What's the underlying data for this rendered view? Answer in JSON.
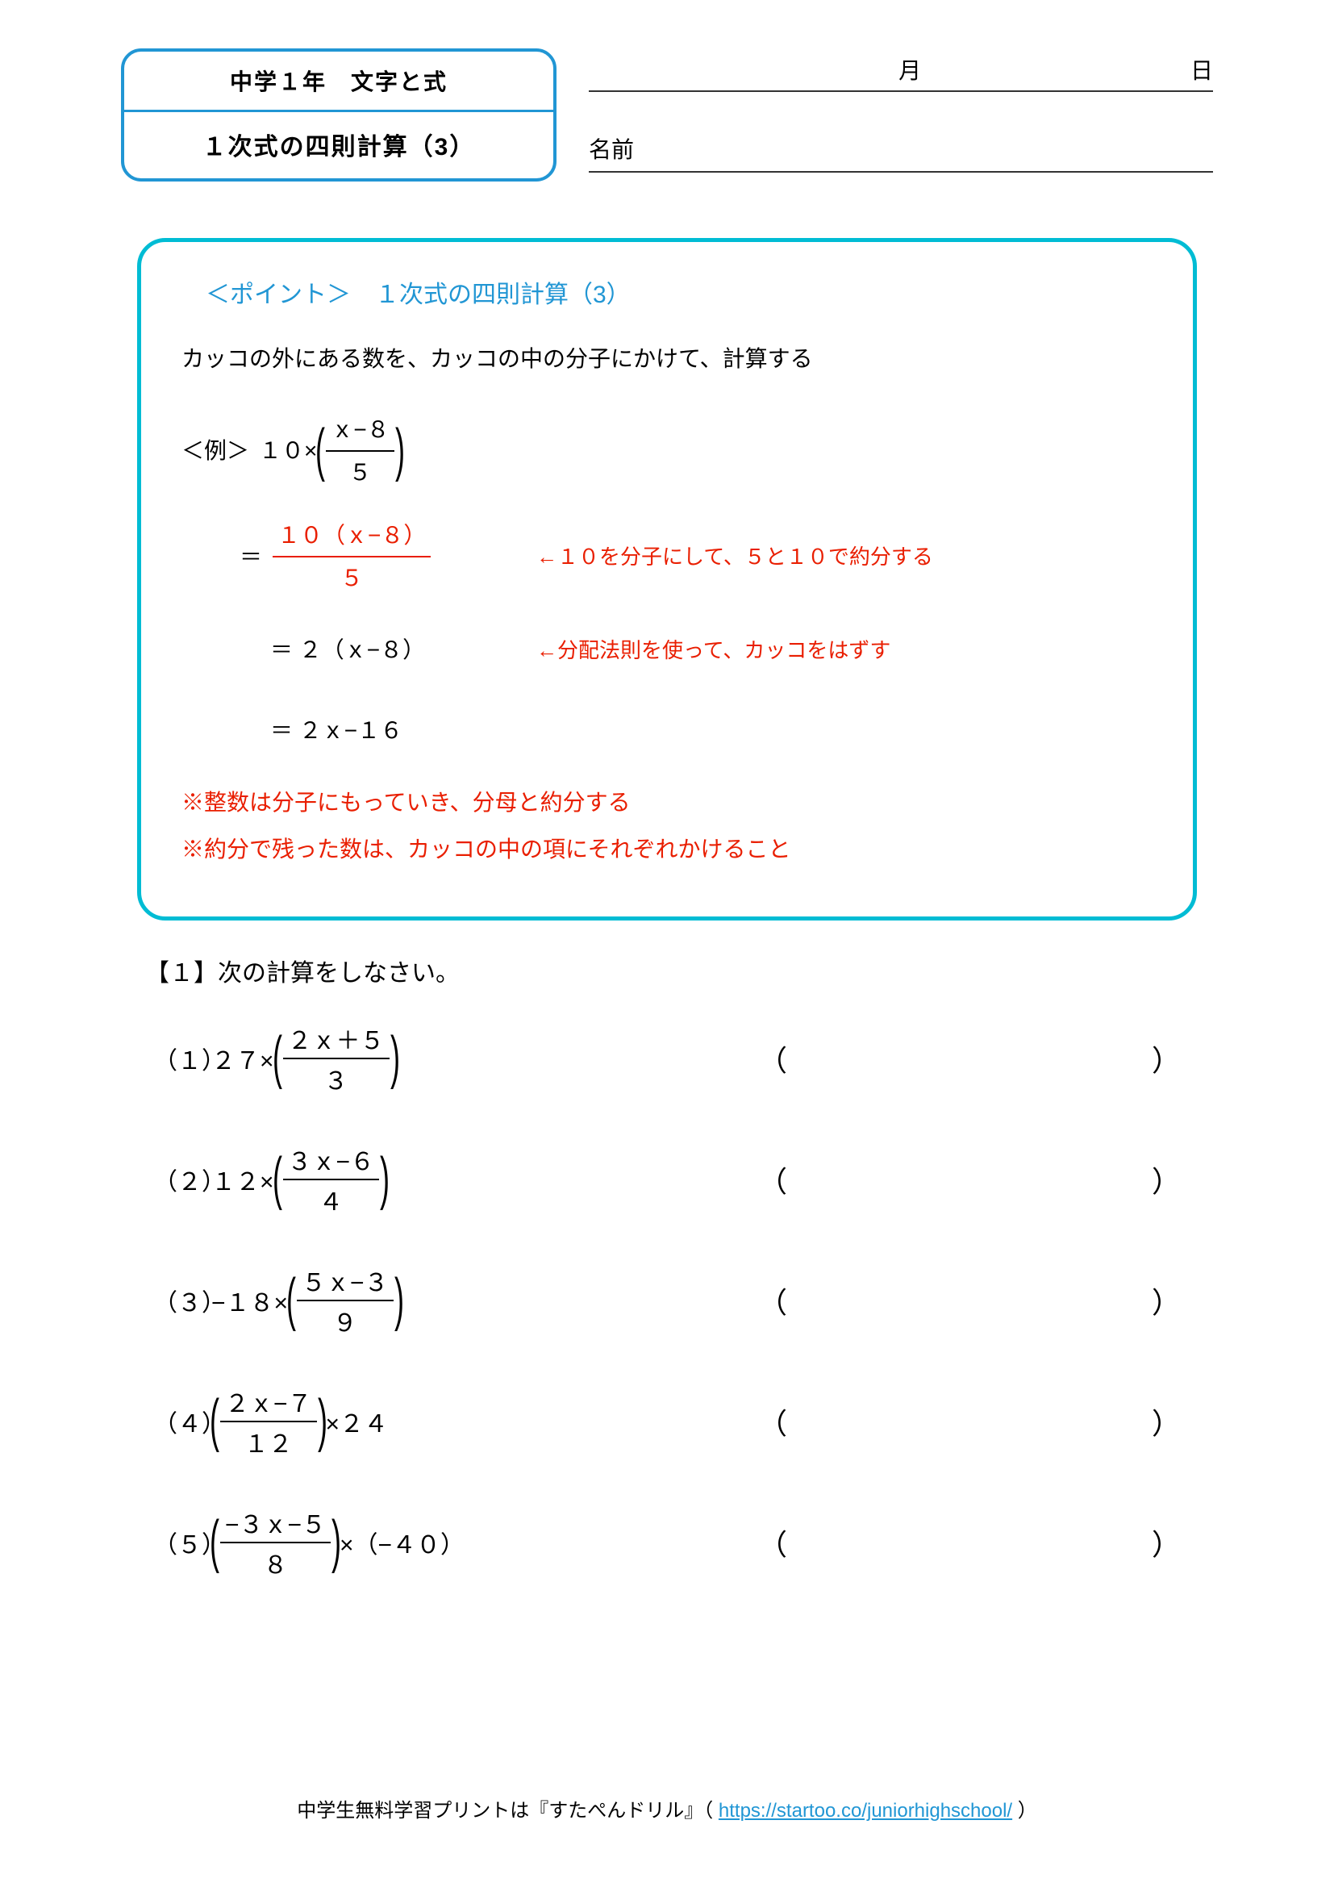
{
  "header": {
    "grade_subject": "中学１年　文字と式",
    "topic": "１次式の四則計算（3）",
    "month_label": "月",
    "day_label": "日",
    "name_label": "名前"
  },
  "point": {
    "title": "＜ポイント＞　１次式の四則計算（3）",
    "desc": "カッコの外にある数を、カッコの中の分子にかけて、計算する",
    "example_label": "＜例＞",
    "ex_lhs_coef": "１０×",
    "ex_frac_num": "ｘ−８",
    "ex_frac_den": "５",
    "step1_eq": "＝",
    "step1_num": "１０（ｘ−８）",
    "step1_den": "５",
    "step1_note": "←１０を分子にして、５と１０で約分する",
    "step2_eq": "＝ ２（ｘ−８）",
    "step2_note": "←分配法則を使って、カッコをはずす",
    "step3_eq": "＝ ２ｘ−１６",
    "note1": "※整数は分子にもっていき、分母と約分する",
    "note2": "※約分で残った数は、カッコの中の項にそれぞれかけること"
  },
  "section": {
    "label": "【１】次の計算をしなさい。"
  },
  "problems": [
    {
      "n": "（１）",
      "pre": "２７×",
      "num": "２ｘ＋５",
      "den": "３",
      "post": ""
    },
    {
      "n": "（２）",
      "pre": "１２×",
      "num": "３ｘ−６",
      "den": "４",
      "post": ""
    },
    {
      "n": "（３）",
      "pre": "−１８×",
      "num": "５ｘ−３",
      "den": "９",
      "post": ""
    },
    {
      "n": "（４）",
      "pre": "",
      "num": "２ｘ−７",
      "den": "１２",
      "post": " ×２４"
    },
    {
      "n": "（５）",
      "pre": "",
      "num": "−３ｘ−５",
      "den": "８",
      "post": " ×（−４０）"
    }
  ],
  "footer": {
    "text_before": "中学生無料学習プリントは『すたぺんドリル』（ ",
    "link": "https://startoo.co/juniorhighschool/",
    "text_after": " ）"
  },
  "colors": {
    "box_border": "#2196d4",
    "point_border": "#00bcd4",
    "red": "#e91e00"
  }
}
